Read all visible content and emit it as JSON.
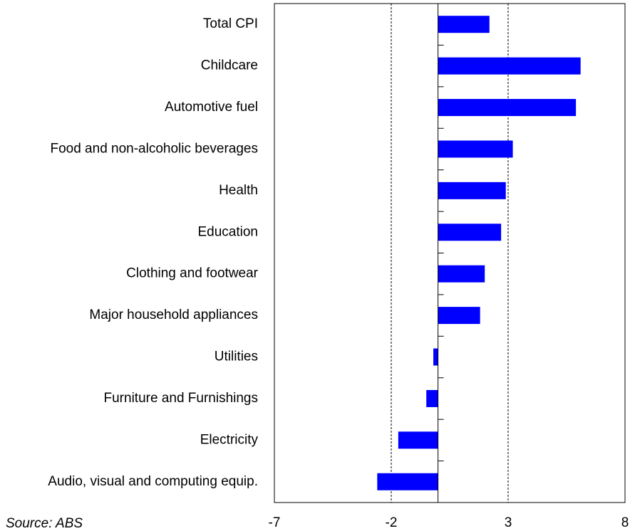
{
  "chart_data": {
    "type": "barh",
    "categories": [
      "Total CPI",
      "Childcare",
      "Automotive fuel",
      "Food and non-alcoholic beverages",
      "Health",
      "Education",
      "Clothing and footwear",
      "Major household appliances",
      "Utilities",
      "Furniture and Furnishings",
      "Electricity",
      "Audio, visual and computing equip."
    ],
    "values": [
      2.2,
      6.1,
      5.9,
      3.2,
      2.9,
      2.7,
      2.0,
      1.8,
      -0.2,
      -0.5,
      -1.7,
      -2.6
    ],
    "color": "#0000ff",
    "xlim": [
      -7,
      8
    ],
    "xticks": [
      -7,
      -2,
      3,
      8
    ],
    "grid": true,
    "source": "Source: ABS"
  }
}
